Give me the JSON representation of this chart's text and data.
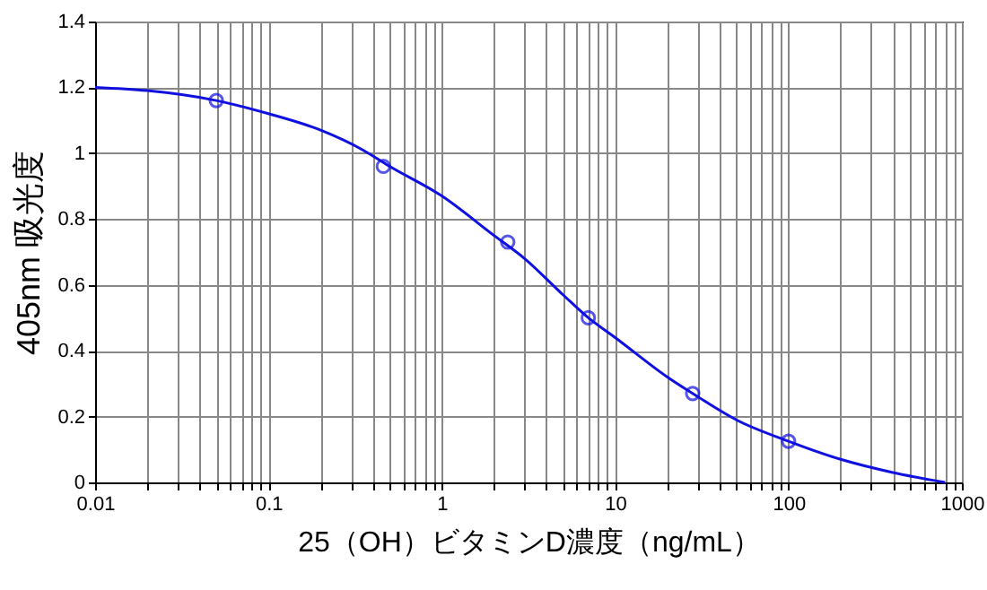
{
  "chart_data": {
    "type": "line",
    "xlabel": "25（OH）ビタミンD濃度（ng/mL）",
    "ylabel": "405nm 吸光度",
    "log": "x",
    "xlim": [
      0.01,
      1000
    ],
    "xticks": [
      0.01,
      {
        "value": 0.02,
        "label": null
      },
      {
        "value": 0.03,
        "label": null
      },
      {
        "value": 0.04,
        "label": null
      },
      {
        "value": 0.05,
        "label": null
      },
      {
        "value": 0.06,
        "label": null
      },
      {
        "value": 0.07,
        "label": null
      },
      {
        "value": 0.08,
        "label": null
      },
      {
        "value": 0.09,
        "label": null
      },
      0.1,
      {
        "value": 0.2,
        "label": null
      },
      {
        "value": 0.3,
        "label": null
      },
      {
        "value": 0.4,
        "label": null
      },
      {
        "value": 0.5,
        "label": null
      },
      {
        "value": 0.6,
        "label": null
      },
      {
        "value": 0.7,
        "label": null
      },
      {
        "value": 0.8,
        "label": null
      },
      {
        "value": 0.9,
        "label": null
      },
      1,
      {
        "value": 2,
        "label": null
      },
      {
        "value": 3,
        "label": null
      },
      {
        "value": 4,
        "label": null
      },
      {
        "value": 5,
        "label": null
      },
      {
        "value": 6,
        "label": null
      },
      {
        "value": 7,
        "label": null
      },
      {
        "value": 8,
        "label": null
      },
      {
        "value": 9,
        "label": null
      },
      10,
      {
        "value": 20,
        "label": null
      },
      {
        "value": 30,
        "label": null
      },
      {
        "value": 40,
        "label": null
      },
      {
        "value": 50,
        "label": null
      },
      {
        "value": 60,
        "label": null
      },
      {
        "value": 70,
        "label": null
      },
      {
        "value": 80,
        "label": null
      },
      {
        "value": 90,
        "label": null
      },
      100,
      {
        "value": 200,
        "label": null
      },
      {
        "value": 300,
        "label": null
      },
      {
        "value": 400,
        "label": null
      },
      {
        "value": 500,
        "label": null
      },
      {
        "value": 600,
        "label": null
      },
      {
        "value": 700,
        "label": null
      },
      {
        "value": 800,
        "label": null
      },
      {
        "value": 900,
        "label": null
      },
      1000
    ],
    "ylim": [
      0,
      1.4
    ],
    "yticks": [
      0,
      0.2,
      0.4,
      0.6,
      0.8,
      1,
      1.2,
      1.4
    ],
    "grid": true,
    "series": [
      {
        "type": "line",
        "color": "#1010e0",
        "line_style": "solid",
        "marker": "none",
        "x": [
          0.01,
          0.02,
          0.05,
          0.1,
          0.2,
          0.35,
          0.5,
          1,
          2,
          3,
          5,
          7,
          10,
          20,
          30,
          50,
          100,
          200,
          400,
          800
        ],
        "values": [
          1.2,
          1.19,
          1.16,
          1.12,
          1.07,
          1.01,
          0.96,
          0.87,
          0.75,
          0.68,
          0.57,
          0.5,
          0.44,
          0.32,
          0.26,
          0.19,
          0.125,
          0.07,
          0.03,
          0
        ]
      },
      {
        "type": "scatter",
        "color": "#1010e0",
        "marker": "circle",
        "x": [
          0.05,
          0.46,
          2.4,
          7,
          28,
          100
        ],
        "values": [
          1.16,
          0.96,
          0.73,
          0.5,
          0.27,
          0.125
        ]
      }
    ]
  }
}
